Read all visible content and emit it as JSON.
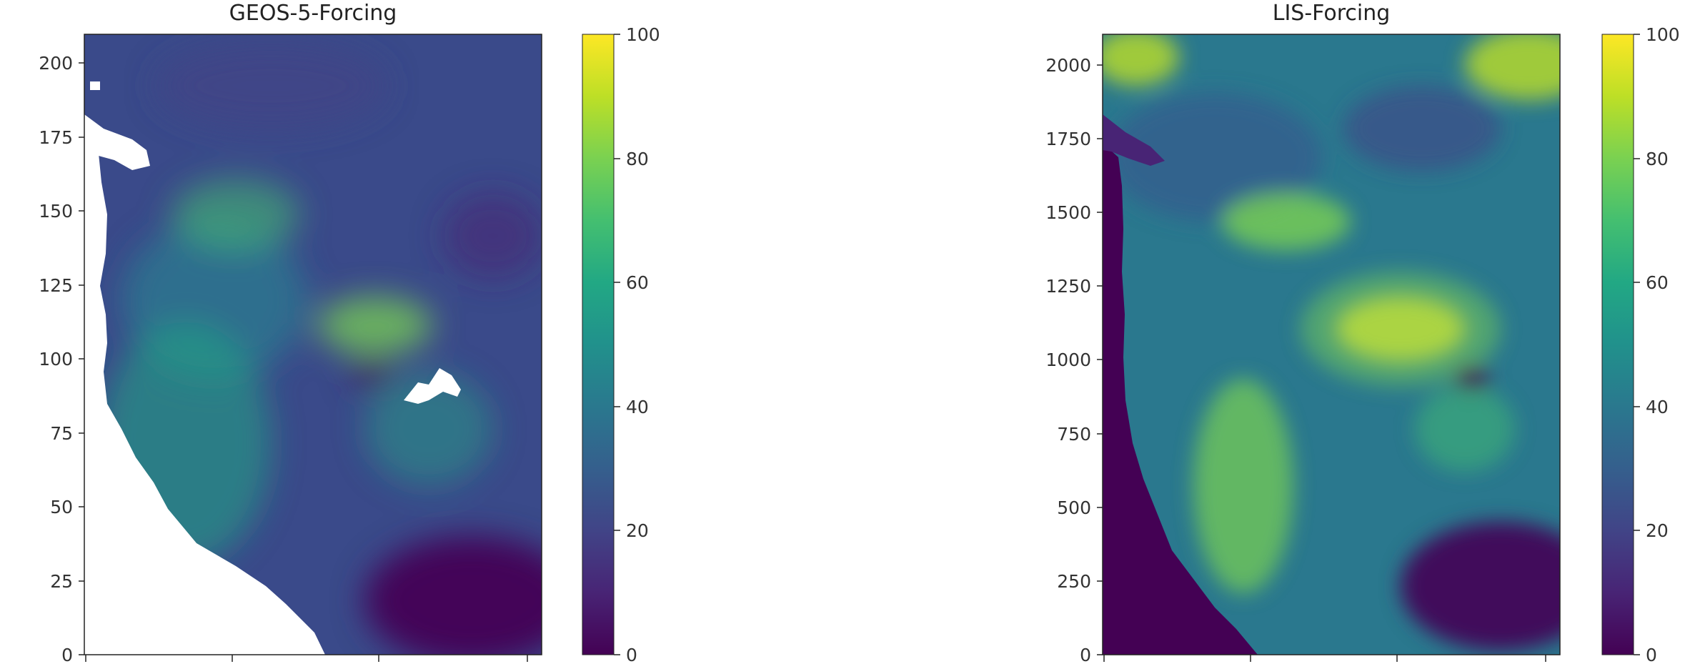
{
  "heading_fragment": "",
  "chart_data": [
    {
      "type": "heatmap",
      "title": "GEOS-5-Forcing",
      "colormap": "viridis",
      "xlabel": "",
      "ylabel": "",
      "ylim": [
        0,
        210
      ],
      "yticks": [
        0,
        25,
        50,
        75,
        100,
        125,
        150,
        175,
        200
      ],
      "ytick_labels": [
        "0",
        "25",
        "50",
        "75",
        "100",
        "125",
        "150",
        "175",
        "200"
      ],
      "xticks_labels": [
        "",
        "",
        "",
        ""
      ],
      "colorbar": {
        "range": [
          0,
          100
        ],
        "ticks": [
          0,
          20,
          40,
          60,
          80,
          100
        ],
        "tick_labels": [
          "0",
          "20",
          "40",
          "60",
          "80",
          "100"
        ]
      },
      "description": "gridded field over western US; high values (~70-90) in Rocky Mountain regions, low values (~0-10) in southeast Texas corner; white (no data) over Pacific ocean"
    },
    {
      "type": "heatmap",
      "title": "LIS-Forcing",
      "colormap": "viridis",
      "xlabel": "",
      "ylabel": "",
      "ylim": [
        0,
        2100
      ],
      "yticks": [
        0,
        250,
        500,
        750,
        1000,
        1250,
        1500,
        1750,
        2000
      ],
      "ytick_labels": [
        "0",
        "250",
        "500",
        "750",
        "1000",
        "1250",
        "1500",
        "1750",
        "2000"
      ],
      "xticks_labels": [
        "",
        "",
        "",
        ""
      ],
      "colorbar": {
        "range": [
          0,
          100
        ],
        "ticks": [
          0,
          20,
          40,
          60,
          80,
          100
        ],
        "tick_labels": [
          "0",
          "20",
          "40",
          "60",
          "80",
          "100"
        ]
      },
      "description": "high-resolution field over western US; peak (~100) in central Rockies, ocean filled with dark low values (~0)"
    }
  ]
}
